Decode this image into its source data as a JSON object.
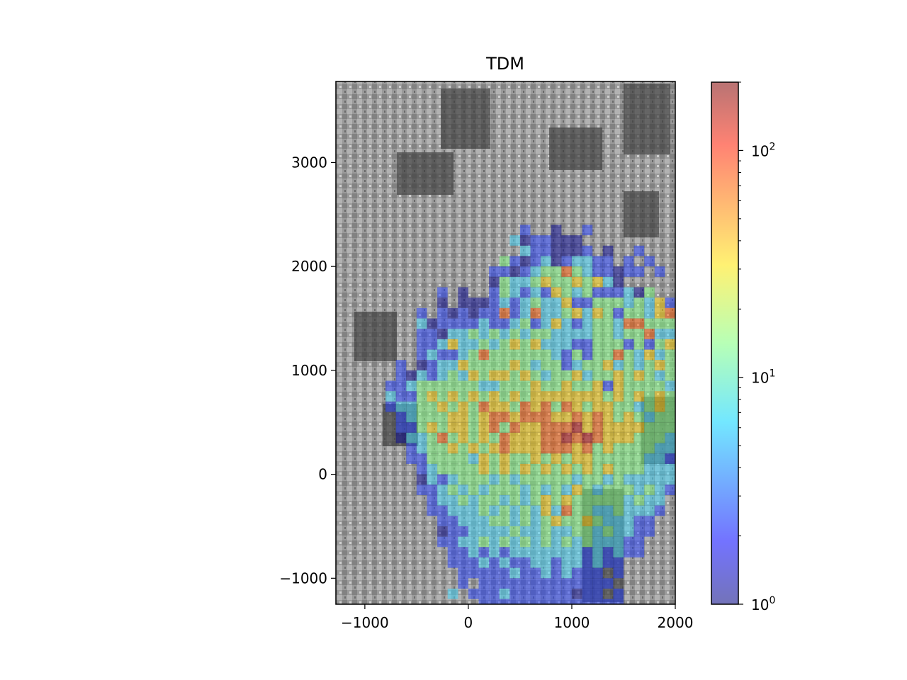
{
  "chart_data": {
    "type": "heatmap",
    "title": "TDM",
    "xlabel": "",
    "ylabel": "",
    "xlim": [
      -1280,
      2000
    ],
    "ylim": [
      -1250,
      3780
    ],
    "x_ticks": [
      -1000,
      0,
      1000,
      2000
    ],
    "x_tick_labels": [
      "−1000",
      "0",
      "1000",
      "2000"
    ],
    "y_ticks": [
      -1000,
      0,
      1000,
      2000,
      3000
    ],
    "y_tick_labels": [
      "−1000",
      "0",
      "1000",
      "2000",
      "3000"
    ],
    "grid": false,
    "background": "grayscale aerial photograph of buildings",
    "colormap": "jet",
    "alpha": 0.5,
    "colorbar": {
      "scale": "log",
      "range": [
        1,
        200
      ],
      "ticks": [
        1,
        10,
        100
      ],
      "tick_base": "10",
      "tick_exponents": [
        "0",
        "1",
        "2"
      ]
    },
    "cell_size": 100,
    "grid_origin": [
      -1300,
      -1300
    ],
    "rows": [
      "..........................................................",
      "..................2..1..2...............................",
      ".................3122111....................................",
      "..................3221112.1..2.........................",
      "................42123123322.2.2.....................",
      "...............221234464322122.2.........................",
      "...............1433454454531.........................",
      "..........2.1..2432325434222314..2.........................",
      "..........1.11123234335224443435222...........................",
      "........2.2121226236334535424435631.........................",
      "........31222232234235323443664442.2.....................",
      "........2213343434344333344344633312.......................",
      "........2235334345453332244424245333222...................",
      "........23223464444443242446435344431.2....................",
      "......2.1233544445434423445343454543232....................",
      "......2132343545545434453445454344432.2...................",
      ".....22344444433444544544525444434433...................",
      ".....322454545454545555555454545434432.....................",
      ".....23344545465546564654554434543332.1..................",
      "......23444554566566655656545434433222...................",
      "......2245455456465566675655554443322.....................",
      "......133464545465556676765554443432.1..................",
      ".......23445454565556665645444433322......................",
      ".......224444354544545455444443322.......................",
      "........2344445454545454545444333222......................",
      "........132344434344444344343333322.......................",
      "........22343434443434354344434322........................",
      ".........23343443434545444443433..........................",
      ".........22333434343536443343332..........................",
      "..........223334434345445433322...........................",
      "..........122333343343344343322...........................",
      "..........22334343434343433322............................",
      "...........2232323333333232322............................",
      "...........22232322332332322..............................",
      "............22222322323222.2..............................",
      "............2.2222222222222...............................",
      "...........3.2223222222122.2..............................",
      "..............22222222222222.............................."
    ]
  },
  "colors": {
    "background": "#ffffff",
    "axes": "#000000"
  }
}
